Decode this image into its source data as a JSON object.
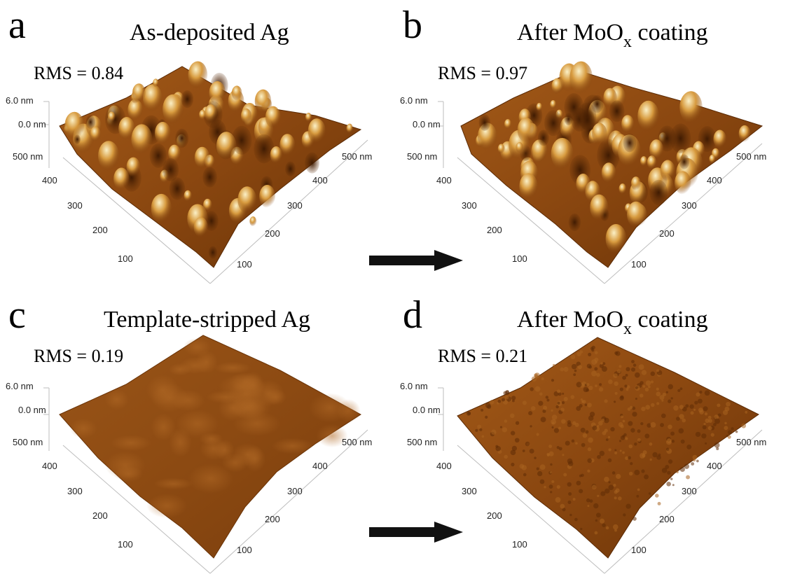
{
  "panels": {
    "a": {
      "letter": "a",
      "title": "As-deposited Ag",
      "rms": "RMS = 0.84"
    },
    "b": {
      "letter": "b",
      "title_prefix": "After MoO",
      "title_sub": "x",
      "title_suffix": " coating",
      "rms": "RMS = 0.97"
    },
    "c": {
      "letter": "c",
      "title": "Template-stripped Ag",
      "rms": "RMS = 0.19"
    },
    "d": {
      "letter": "d",
      "title_prefix": "After MoO",
      "title_sub": "x",
      "title_suffix": " coating",
      "rms": "RMS = 0.21"
    }
  },
  "axes": {
    "z_top": "6.0 nm",
    "z_zero": "0.0 nm",
    "left_ticks": [
      "500 nm",
      "400",
      "300",
      "200",
      "100"
    ],
    "right_ticks": [
      "500 nm",
      "400",
      "300",
      "200",
      "100"
    ]
  },
  "colors": {
    "surface_dark": "#5a2a05",
    "surface_mid": "#8a4a12",
    "surface_light": "#c8892e",
    "peak": "#f3e0a6",
    "arrow": "#111111"
  }
}
